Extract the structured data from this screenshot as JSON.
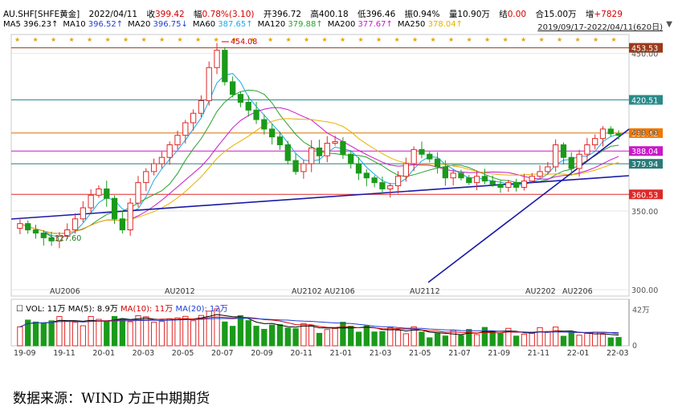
{
  "header": {
    "symbol": "AU.SHF[SHFE黄金]",
    "date": "2022/04/11",
    "close_label": "收",
    "close": "399.42",
    "change_label": "幅",
    "change": "0.78%(3.10)",
    "open_label": "开",
    "open": "396.72",
    "high_label": "高",
    "high": "400.18",
    "low_label": "低",
    "low": "396.46",
    "amp_label": "振",
    "amp": "0.94%",
    "vol_label": "量",
    "vol": "10.90万",
    "settle_label": "结",
    "settle": "0.00",
    "oi_label": "合",
    "oi": "15.00万",
    "oichg_label": "增",
    "oichg": "+7829",
    "range": "2019/09/17-2022/04/11(620日)",
    "ma": [
      {
        "label": "MA5",
        "value": "396.23↑",
        "color": "#000000"
      },
      {
        "label": "MA10",
        "value": "396.52↑",
        "color": "#1f3fd0"
      },
      {
        "label": "MA20",
        "value": "396.75↓",
        "color": "#1f3fd0"
      },
      {
        "label": "MA60",
        "value": "387.65↑",
        "color": "#19a9e6"
      },
      {
        "label": "MA120",
        "value": "379.88↑",
        "color": "#2ba02b"
      },
      {
        "label": "MA200",
        "value": "377.67↑",
        "color": "#c818c8"
      },
      {
        "label": "MA250",
        "value": "378.04↑",
        "color": "#e8b000"
      }
    ]
  },
  "volume_legend": {
    "vol": "VOL: 11万",
    "ma5": "MA(5): 8.9万",
    "ma10": "MA(10): 11万",
    "ma20": "MA(20): 12万",
    "colors": {
      "ma5": "#000000",
      "ma10": "#d40000",
      "ma20": "#1f3fd0"
    }
  },
  "source": "数据来源：WIND 方正中期期货",
  "chart_data": {
    "type": "candlestick",
    "price_axis": {
      "ticks": [
        300,
        350,
        400,
        450
      ],
      "range": [
        296,
        462
      ]
    },
    "volume_axis": {
      "ticks": [
        {
          "value": 42,
          "label": "42万"
        },
        {
          "value": 0,
          "label": "0"
        }
      ],
      "range": [
        0,
        55
      ]
    },
    "x_labels": [
      "19-09",
      "19-11",
      "20-01",
      "20-03",
      "20-05",
      "20-07",
      "20-09",
      "20-11",
      "21-01",
      "21-03",
      "21-05",
      "21-07",
      "21-09",
      "21-11",
      "22-01",
      "22-03"
    ],
    "annotations_au": [
      "AU2006",
      "AU2012",
      "AU2102",
      "AU2106",
      "AU2112",
      "AU2202",
      "AU2206"
    ],
    "max_label": "454.08",
    "min_label": "327.60",
    "levels": [
      {
        "value": 453.53,
        "label": "453.53",
        "color": "#9a3a1a"
      },
      {
        "value": 420.51,
        "label": "420.51",
        "color": "#2a8a8a"
      },
      {
        "value": 399.42,
        "label": "399.42",
        "color": "#f07800"
      },
      {
        "value": 388.04,
        "label": "388.04",
        "color": "#c818c8"
      },
      {
        "value": 379.94,
        "label": "379.94",
        "color": "#2a7a7a"
      },
      {
        "value": 360.53,
        "label": "360.53",
        "color": "#e02828"
      }
    ],
    "closes": [
      342,
      338,
      336,
      333,
      331,
      334,
      338,
      345,
      352,
      360,
      364,
      358,
      345,
      338,
      355,
      368,
      375,
      380,
      384,
      392,
      398,
      406,
      412,
      420,
      441,
      452,
      432,
      424,
      419,
      414,
      408,
      402,
      397,
      392,
      382,
      375,
      380,
      390,
      385,
      393,
      394,
      386,
      380,
      374,
      371,
      368,
      364,
      366,
      372,
      380,
      389,
      386,
      383,
      378,
      371,
      374,
      371,
      368,
      372,
      369,
      367,
      365,
      368,
      365,
      369,
      372,
      375,
      378,
      392,
      384,
      377,
      386,
      392,
      396,
      402,
      399,
      398
    ],
    "series": [
      {
        "name": "MA60",
        "color": "#19a9e6"
      },
      {
        "name": "MA120",
        "color": "#2ba02b"
      },
      {
        "name": "MA200",
        "color": "#c818c8"
      },
      {
        "name": "MA250",
        "color": "#e8b000"
      }
    ]
  }
}
